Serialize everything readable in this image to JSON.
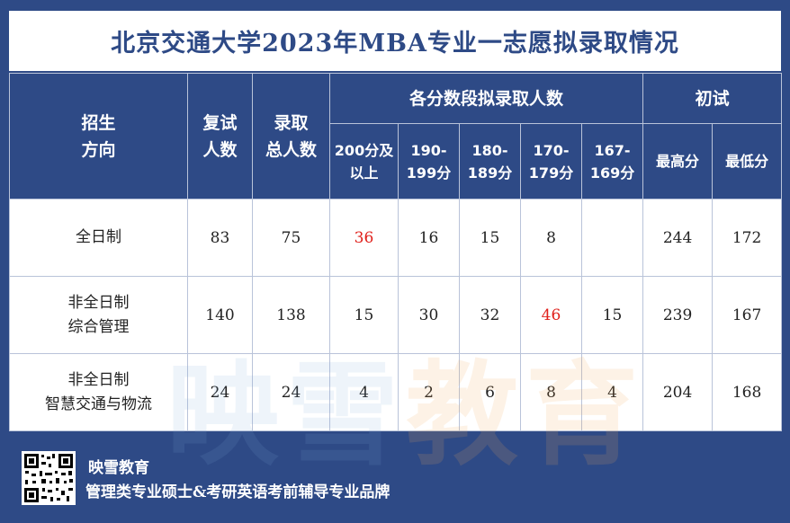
{
  "title": "北京交通大学2023年MBA专业一志愿拟录取情况",
  "headers": {
    "direction_line1": "招生",
    "direction_line2": "方向",
    "retest_line1": "复试",
    "retest_line2": "人数",
    "admit_line1": "录取",
    "admit_line2": "总人数",
    "score_group": "各分数段拟录取人数",
    "initial_group": "初试",
    "score_bands": [
      {
        "line1": "200分及",
        "line2": "以上"
      },
      {
        "line1": "190-",
        "line2": "199分"
      },
      {
        "line1": "180-",
        "line2": "189分"
      },
      {
        "line1": "170-",
        "line2": "179分"
      },
      {
        "line1": "167-",
        "line2": "169分"
      }
    ],
    "max_score": "最高分",
    "min_score": "最低分"
  },
  "rows": [
    {
      "direction_line1": "全日制",
      "direction_line2": "",
      "retest": "83",
      "admitted": "75",
      "bands": [
        "36",
        "16",
        "15",
        "8",
        ""
      ],
      "max": "244",
      "min": "172"
    },
    {
      "direction_line1": "非全日制",
      "direction_line2": "综合管理",
      "retest": "140",
      "admitted": "138",
      "bands": [
        "15",
        "30",
        "32",
        "46",
        "15"
      ],
      "max": "239",
      "min": "167"
    },
    {
      "direction_line1": "非全日制",
      "direction_line2": "智慧交通与物流",
      "retest": "24",
      "admitted": "24",
      "bands": [
        "4",
        "2",
        "6",
        "8",
        "4"
      ],
      "max": "204",
      "min": "168"
    }
  ],
  "highlight_color": "#e0201b",
  "watermark": {
    "part1": "映雪",
    "part2": "教育"
  },
  "footer": {
    "brand": "映雪教育",
    "slogan": "管理类专业硕士&考研英语考前辅导专业品牌",
    "qr_icon": "qr-code-icon"
  }
}
